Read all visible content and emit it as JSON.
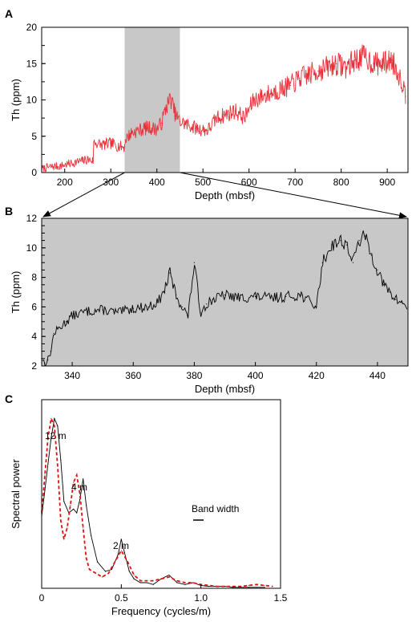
{
  "colors": {
    "red_series": "#e8303a",
    "black_series": "#000000",
    "highlight": "#c8c8c8",
    "dashed_red": "#e01010"
  },
  "chart_data": [
    {
      "panel": "A",
      "type": "line",
      "xlabel": "Depth (mbsf)",
      "ylabel": "Th (ppm)",
      "xlim": [
        150,
        945
      ],
      "ylim": [
        0,
        20
      ],
      "xticks": [
        200,
        300,
        400,
        500,
        600,
        700,
        800,
        900
      ],
      "yticks": [
        0,
        5,
        10,
        15,
        20
      ],
      "highlight_range": [
        330,
        450
      ],
      "series": [
        {
          "color": "#e8303a",
          "x": [
            150,
            170,
            190,
            210,
            230,
            250,
            262,
            263,
            280,
            300,
            320,
            330,
            331,
            345,
            360,
            380,
            400,
            410,
            420,
            430,
            440,
            450,
            470,
            490,
            510,
            530,
            550,
            570,
            590,
            610,
            630,
            650,
            670,
            690,
            710,
            730,
            750,
            770,
            790,
            810,
            830,
            850,
            870,
            890,
            910,
            925,
            935,
            940
          ],
          "y": [
            0.5,
            0.8,
            0.9,
            1.2,
            1.5,
            1.8,
            1.6,
            4.2,
            3.8,
            4.0,
            3.6,
            3.5,
            4.5,
            5.5,
            5.8,
            6.2,
            6.0,
            6.8,
            9.0,
            10.2,
            8.0,
            7.0,
            6.5,
            6.0,
            5.8,
            7.5,
            8.0,
            8.5,
            7.5,
            10.0,
            10.5,
            11.0,
            11.5,
            12.0,
            13.0,
            13.5,
            14.0,
            14.5,
            15.0,
            14.5,
            15.5,
            16.0,
            15.0,
            15.0,
            15.5,
            13.5,
            12.0,
            10.5
          ]
        }
      ]
    },
    {
      "panel": "B",
      "type": "line",
      "xlabel": "Depth (mbsf)",
      "ylabel": "Th (ppm)",
      "xlim": [
        330,
        450
      ],
      "ylim": [
        2,
        12
      ],
      "xticks": [
        340,
        360,
        380,
        400,
        420,
        440
      ],
      "yticks": [
        2,
        4,
        6,
        8,
        10,
        12
      ],
      "series": [
        {
          "color": "#000000",
          "x": [
            330,
            331,
            332,
            333,
            334,
            336,
            338,
            340,
            345,
            350,
            355,
            360,
            365,
            368,
            370,
            372,
            374,
            376,
            378,
            380,
            382,
            384,
            386,
            390,
            395,
            400,
            405,
            410,
            415,
            420,
            422,
            425,
            428,
            430,
            432,
            434,
            436,
            438,
            440,
            442,
            444,
            446,
            448,
            450
          ],
          "y": [
            2.5,
            2.2,
            2.4,
            3.0,
            4.2,
            4.6,
            5.0,
            5.4,
            5.7,
            5.8,
            5.6,
            5.9,
            6.0,
            6.3,
            7.0,
            8.3,
            6.8,
            6.0,
            5.4,
            9.0,
            5.6,
            6.2,
            6.5,
            6.8,
            6.6,
            6.7,
            6.6,
            6.7,
            6.8,
            6.0,
            9.0,
            10.2,
            10.5,
            10.2,
            9.0,
            10.5,
            10.8,
            9.5,
            8.5,
            7.5,
            7.0,
            6.5,
            6.3,
            6.0
          ]
        }
      ]
    },
    {
      "panel": "C",
      "type": "line",
      "xlabel": "Frequency (cycles/m)",
      "ylabel": "Spectral power",
      "xlim": [
        0,
        1.5
      ],
      "ylim": [
        0,
        1
      ],
      "xticks": [
        0,
        0.5,
        1.0,
        1.5
      ],
      "xtick_labels": [
        "0",
        "0.5",
        "1.0",
        "1.5"
      ],
      "series": [
        {
          "color": "#000000",
          "style": "solid",
          "x": [
            0,
            0.02,
            0.04,
            0.06,
            0.08,
            0.1,
            0.12,
            0.14,
            0.17,
            0.2,
            0.22,
            0.24,
            0.26,
            0.28,
            0.31,
            0.35,
            0.4,
            0.44,
            0.48,
            0.5,
            0.52,
            0.55,
            0.58,
            0.62,
            0.66,
            0.7,
            0.75,
            0.8,
            0.85,
            0.9,
            0.95,
            1.0,
            1.05,
            1.1,
            1.15,
            1.2,
            1.3,
            1.4
          ],
          "y": [
            0.38,
            0.52,
            0.66,
            0.8,
            0.9,
            0.86,
            0.68,
            0.46,
            0.4,
            0.42,
            0.4,
            0.47,
            0.58,
            0.44,
            0.28,
            0.14,
            0.09,
            0.1,
            0.18,
            0.26,
            0.19,
            0.09,
            0.05,
            0.03,
            0.03,
            0.02,
            0.05,
            0.07,
            0.03,
            0.02,
            0.03,
            0.015,
            0.01,
            0.01,
            0.01,
            0.005,
            0.005,
            0.005
          ]
        },
        {
          "color": "#e01010",
          "style": "dashed",
          "x": [
            0,
            0.02,
            0.04,
            0.06,
            0.08,
            0.1,
            0.12,
            0.14,
            0.16,
            0.18,
            0.2,
            0.22,
            0.24,
            0.26,
            0.28,
            0.3,
            0.34,
            0.38,
            0.42,
            0.46,
            0.5,
            0.54,
            0.58,
            0.62,
            0.66,
            0.7,
            0.75,
            0.8,
            0.85,
            0.9,
            0.95,
            1.0,
            1.1,
            1.2,
            1.25,
            1.3,
            1.35,
            1.4,
            1.45
          ],
          "y": [
            0.4,
            0.6,
            0.8,
            0.9,
            0.86,
            0.65,
            0.36,
            0.26,
            0.32,
            0.44,
            0.56,
            0.6,
            0.5,
            0.32,
            0.16,
            0.1,
            0.08,
            0.06,
            0.08,
            0.14,
            0.2,
            0.14,
            0.07,
            0.04,
            0.04,
            0.04,
            0.05,
            0.06,
            0.04,
            0.03,
            0.03,
            0.02,
            0.01,
            0.01,
            0.01,
            0.015,
            0.02,
            0.015,
            0.01
          ]
        }
      ],
      "annotations": [
        "12 m",
        "4 m",
        "2 m",
        "Band width"
      ]
    }
  ],
  "labels": {
    "panel_a": "A",
    "panel_b": "B",
    "panel_c": "C"
  }
}
